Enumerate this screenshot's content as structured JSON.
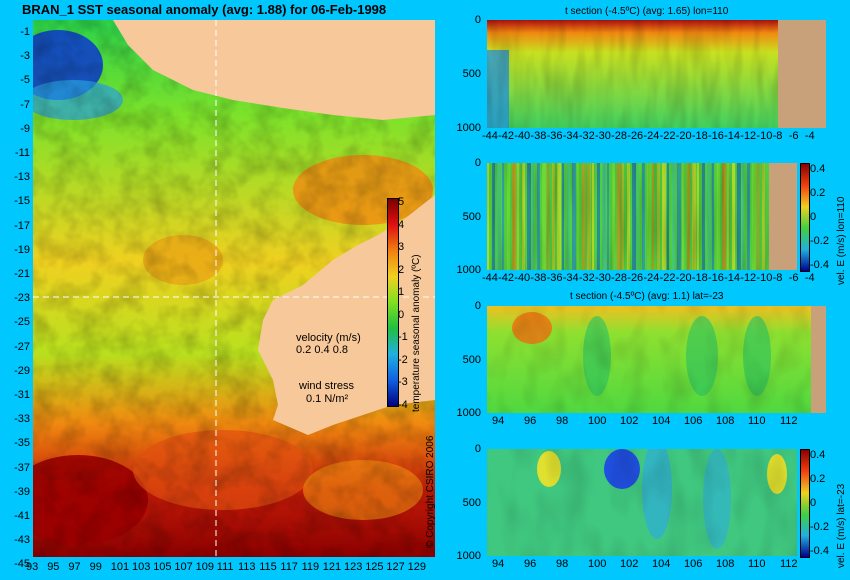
{
  "main": {
    "title": "BRAN_1  SST seasonal anomaly  (avg: 1.88) for 06-Feb-1998",
    "lat_ticks": [
      "-1",
      "-3",
      "-5",
      "-7",
      "-9",
      "-11",
      "-13",
      "-15",
      "-17",
      "-19",
      "-21",
      "-23",
      "-25",
      "-27",
      "-29",
      "-31",
      "-33",
      "-35",
      "-37",
      "-39",
      "-41",
      "-43",
      "-45"
    ],
    "lon_ticks": [
      "93",
      "95",
      "97",
      "99",
      "101",
      "103",
      "105",
      "107",
      "109",
      "111",
      "113",
      "115",
      "117",
      "119",
      "121",
      "123",
      "125",
      "127",
      "129"
    ],
    "colorbar_label": "temperature seasonal anomaly (ºC)",
    "colorbar_ticks": [
      "5",
      "4",
      "3",
      "2",
      "1",
      "0",
      "-1",
      "-2",
      "-3",
      "-4"
    ],
    "velocity_label": "velocity (m/s)",
    "velocity_scale": "0.2 0.4 0.8",
    "wind_label": "wind stress",
    "wind_value": "0.1 N/m²",
    "copyright": "© Copyright CSIRO 2006"
  },
  "panels": [
    {
      "title": "t section (-4.5ºC) (avg: 1.65) lon=110",
      "x_ticks": [
        "-44",
        "-42",
        "-40",
        "-38",
        "-36",
        "-34",
        "-32",
        "-30",
        "-28",
        "-26",
        "-24",
        "-22",
        "-20",
        "-18",
        "-16",
        "-14",
        "-12",
        "-10",
        "-8",
        "-6",
        "-4"
      ],
      "y_ticks": [
        "0",
        "500",
        "1000"
      ]
    },
    {
      "title": "",
      "x_ticks": [
        "-44",
        "-42",
        "-40",
        "-38",
        "-36",
        "-34",
        "-32",
        "-30",
        "-28",
        "-26",
        "-24",
        "-22",
        "-20",
        "-18",
        "-16",
        "-14",
        "-12",
        "-10",
        "-8",
        "-6",
        "-4"
      ],
      "y_ticks": [
        "0",
        "500",
        "1000"
      ],
      "cbar_label": "vel. E (m/s) lon=110",
      "cbar_ticks": [
        "0.4",
        "0.2",
        "0",
        "-0.2",
        "-0.4"
      ]
    },
    {
      "title": "t section (-4.5ºC) (avg: 1.1) lat=-23",
      "x_ticks": [
        "94",
        "96",
        "98",
        "100",
        "102",
        "104",
        "106",
        "108",
        "110",
        "112"
      ],
      "y_ticks": [
        "0",
        "500",
        "1000"
      ]
    },
    {
      "title": "",
      "x_ticks": [
        "94",
        "96",
        "98",
        "100",
        "102",
        "104",
        "106",
        "108",
        "110",
        "112"
      ],
      "y_ticks": [
        "0",
        "500",
        "1000"
      ],
      "cbar_label": "vel. E (m/s) lat=-23",
      "cbar_ticks": [
        "0.4",
        "0.2",
        "0",
        "-0.2",
        "-0.4"
      ]
    }
  ],
  "chart_data": [
    {
      "type": "heatmap",
      "title": "BRAN_1  SST seasonal anomaly  (avg: 1.88) for 06-Feb-1998",
      "xlim": [
        93,
        130
      ],
      "ylim": [
        -45,
        0
      ],
      "colorbar_range": [
        -4,
        5
      ]
    },
    {
      "type": "heatmap",
      "title": "t section (-4.5ºC) (avg: 1.65) lon=110",
      "xlim": [
        -45,
        -3
      ],
      "ylim": [
        1050,
        0
      ]
    },
    {
      "type": "heatmap",
      "xlim": [
        -45,
        -3
      ],
      "ylim": [
        1050,
        0
      ],
      "colorbar_range": [
        -0.45,
        0.45
      ]
    },
    {
      "type": "heatmap",
      "title": "t section (-4.5ºC) (avg: 1.1) lat=-23",
      "xlim": [
        93,
        114
      ],
      "ylim": [
        1050,
        0
      ]
    },
    {
      "type": "heatmap",
      "xlim": [
        93,
        114
      ],
      "ylim": [
        1050,
        0
      ],
      "colorbar_range": [
        -0.45,
        0.45
      ]
    }
  ],
  "colors": {
    "background": "#00c8ff",
    "land": "#f7c89a",
    "section_land": "#c8a07a"
  }
}
